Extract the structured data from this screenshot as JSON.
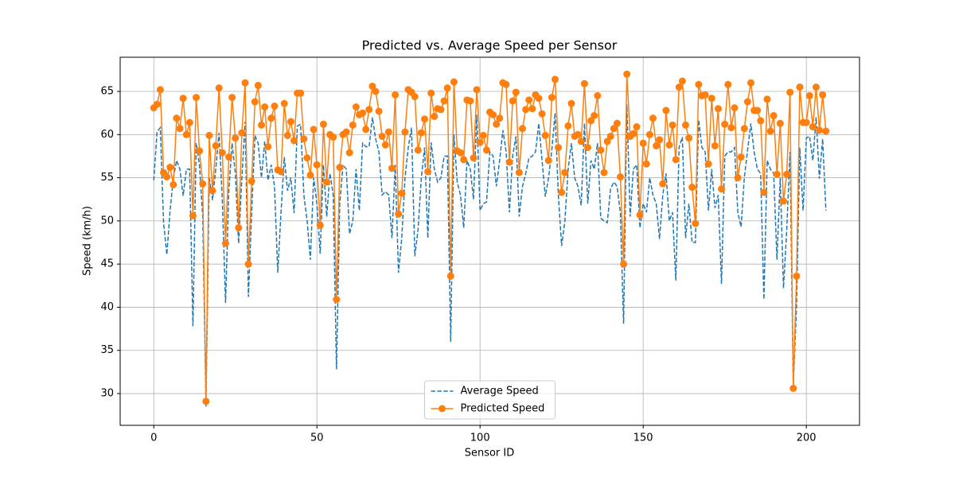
{
  "chart_data": {
    "type": "line",
    "title": "Predicted vs. Average Speed per Sensor",
    "x_label": "Sensor ID",
    "y_label": "Speed (km/h)",
    "xlim": [
      -10.3,
      216.3
    ],
    "xticks": [
      0,
      50,
      100,
      150,
      200
    ],
    "ylim": [
      26.32,
      68.96
    ],
    "yticks": [
      30,
      35,
      40,
      45,
      50,
      55,
      60,
      65
    ],
    "grid": true,
    "legend": "lower center",
    "x": [
      0,
      1,
      2,
      3,
      4,
      5,
      6,
      7,
      8,
      9,
      10,
      11,
      12,
      13,
      14,
      15,
      16,
      17,
      18,
      19,
      20,
      21,
      22,
      23,
      24,
      25,
      26,
      27,
      28,
      29,
      30,
      31,
      32,
      33,
      34,
      35,
      36,
      37,
      38,
      39,
      40,
      41,
      42,
      43,
      44,
      45,
      46,
      47,
      48,
      49,
      50,
      51,
      52,
      53,
      54,
      55,
      56,
      57,
      58,
      59,
      60,
      61,
      62,
      63,
      64,
      65,
      66,
      67,
      68,
      69,
      70,
      71,
      72,
      73,
      74,
      75,
      76,
      77,
      78,
      79,
      80,
      81,
      82,
      83,
      84,
      85,
      86,
      87,
      88,
      89,
      90,
      91,
      92,
      93,
      94,
      95,
      96,
      97,
      98,
      99,
      100,
      101,
      102,
      103,
      104,
      105,
      106,
      107,
      108,
      109,
      110,
      111,
      112,
      113,
      114,
      115,
      116,
      117,
      118,
      119,
      120,
      121,
      122,
      123,
      124,
      125,
      126,
      127,
      128,
      129,
      130,
      131,
      132,
      133,
      134,
      135,
      136,
      137,
      138,
      139,
      140,
      141,
      142,
      143,
      144,
      145,
      146,
      147,
      148,
      149,
      150,
      151,
      152,
      153,
      154,
      155,
      156,
      157,
      158,
      159,
      160,
      161,
      162,
      163,
      164,
      165,
      166,
      167,
      168,
      169,
      170,
      171,
      172,
      173,
      174,
      175,
      176,
      177,
      178,
      179,
      180,
      181,
      182,
      183,
      184,
      185,
      186,
      187,
      188,
      189,
      190,
      191,
      192,
      193,
      194,
      195,
      196,
      197,
      198,
      199,
      200,
      201,
      202,
      203,
      204,
      205,
      206
    ],
    "series": [
      {
        "name": "Average Speed",
        "color": "#1f77b4",
        "linestyle": "dashed",
        "marker": "none",
        "values": [
          54.7,
          60.3,
          60.8,
          49.8,
          46.1,
          51.2,
          55.0,
          57.0,
          56.0,
          52.9,
          56.0,
          56.0,
          37.8,
          59.0,
          56.5,
          50.5,
          28.5,
          55.0,
          52.4,
          56.0,
          60.2,
          52.5,
          40.5,
          53.5,
          59.0,
          55.5,
          47.4,
          55.0,
          61.5,
          41.2,
          51.0,
          59.9,
          59.0,
          55.0,
          59.2,
          54.7,
          56.5,
          54.0,
          44.0,
          51.0,
          57.4,
          53.5,
          55.0,
          50.9,
          61.0,
          61.2,
          53.0,
          50.0,
          45.5,
          55.0,
          52.0,
          46.2,
          56.5,
          50.5,
          55.5,
          53.0,
          32.8,
          52.0,
          56.5,
          56.0,
          48.5,
          50.0,
          56.0,
          51.2,
          59.0,
          58.6,
          58.6,
          62.0,
          59.5,
          58.0,
          53.0,
          53.4,
          53.0,
          48.0,
          56.5,
          44.0,
          48.0,
          55.0,
          58.5,
          60.8,
          45.9,
          49.0,
          55.0,
          58.5,
          48.0,
          59.1,
          56.0,
          54.5,
          55.0,
          57.5,
          57.5,
          36.0,
          60.0,
          54.5,
          53.0,
          49.2,
          57.0,
          56.0,
          52.5,
          62.3,
          51.2,
          52.0,
          52.2,
          58.0,
          57.5,
          54.0,
          57.0,
          60.5,
          58.0,
          51.0,
          57.5,
          59.8,
          50.5,
          54.0,
          55.5,
          57.3,
          57.5,
          58.0,
          61.3,
          57.0,
          52.8,
          55.0,
          58.2,
          62.5,
          53.0,
          47.1,
          50.0,
          56.0,
          59.0,
          55.0,
          54.0,
          51.8,
          61.3,
          52.0,
          57.0,
          56.0,
          59.0,
          50.3,
          50.0,
          49.8,
          53.7,
          54.5,
          54.0,
          51.0,
          38.1,
          63.5,
          50.5,
          56.0,
          56.5,
          49.2,
          52.0,
          51.0,
          55.0,
          53.0,
          52.0,
          47.9,
          53.0,
          55.5,
          50.0,
          51.0,
          43.1,
          58.5,
          59.7,
          48.0,
          52.0,
          47.5,
          47.5,
          61.7,
          58.5,
          58.0,
          51.2,
          56.0,
          51.5,
          53.0,
          42.7,
          57.5,
          58.0,
          58.0,
          58.5,
          51.0,
          49.3,
          55.0,
          58.2,
          61.3,
          58.0,
          56.0,
          55.5,
          40.9,
          57.0,
          56.0,
          55.5,
          45.5,
          55.0,
          42.2,
          49.0,
          58.0,
          30.9,
          40.0,
          58.5,
          51.2,
          59.6,
          59.8,
          57.0,
          62.0,
          54.9,
          59.5,
          51.2
        ]
      },
      {
        "name": "Predicted Speed",
        "color": "#ff7f0e",
        "linestyle": "solid",
        "marker": "o",
        "values": [
          63.1,
          63.5,
          65.2,
          55.6,
          55.1,
          56.2,
          54.2,
          61.9,
          60.7,
          64.2,
          60.0,
          61.4,
          50.6,
          64.3,
          58.1,
          54.3,
          29.1,
          59.9,
          53.5,
          58.7,
          65.4,
          57.9,
          47.4,
          57.4,
          64.3,
          59.6,
          49.2,
          60.2,
          66.0,
          45.0,
          54.6,
          63.8,
          65.7,
          61.1,
          63.2,
          58.6,
          61.9,
          63.3,
          55.9,
          55.7,
          63.6,
          59.9,
          61.5,
          59.3,
          64.8,
          64.8,
          59.5,
          57.3,
          55.3,
          60.6,
          56.5,
          49.5,
          61.2,
          54.5,
          60.0,
          59.7,
          40.9,
          56.2,
          60.0,
          60.3,
          57.9,
          61.1,
          63.2,
          62.3,
          62.5,
          60.6,
          62.9,
          65.6,
          65.0,
          62.7,
          59.8,
          58.8,
          60.3,
          56.1,
          64.6,
          50.8,
          53.2,
          60.3,
          65.2,
          64.9,
          64.4,
          58.2,
          60.2,
          61.8,
          55.7,
          64.8,
          62.1,
          63.0,
          62.9,
          63.9,
          65.4,
          43.6,
          66.1,
          58.1,
          57.9,
          57.1,
          64.0,
          63.9,
          57.3,
          65.2,
          59.1,
          59.9,
          58.2,
          62.6,
          62.3,
          61.2,
          61.9,
          66.0,
          65.8,
          56.8,
          63.9,
          64.9,
          55.6,
          60.7,
          62.9,
          64.0,
          63.0,
          64.6,
          64.2,
          62.4,
          59.9,
          57.0,
          64.3,
          66.4,
          58.5,
          53.3,
          55.6,
          61.0,
          63.6,
          59.8,
          60.0,
          59.2,
          65.9,
          58.5,
          61.6,
          62.2,
          64.5,
          58.2,
          55.6,
          59.2,
          59.8,
          60.7,
          61.3,
          55.1,
          45.0,
          67.0,
          59.8,
          60.1,
          60.9,
          50.7,
          59.0,
          56.6,
          60.0,
          61.9,
          58.7,
          59.4,
          54.3,
          62.8,
          58.8,
          61.1,
          57.1,
          65.5,
          66.2,
          61.1,
          59.6,
          53.9,
          49.7,
          65.8,
          64.5,
          64.6,
          56.6,
          64.2,
          58.7,
          63.0,
          53.7,
          61.2,
          65.8,
          60.8,
          63.1,
          55.0,
          57.4,
          60.7,
          63.8,
          66.0,
          62.8,
          62.8,
          61.6,
          53.3,
          64.1,
          60.4,
          62.2,
          55.4,
          61.3,
          52.3,
          55.4,
          64.9,
          30.6,
          43.6,
          65.5,
          61.4,
          61.4,
          64.5,
          60.9,
          65.5,
          60.5,
          64.6,
          60.4
        ]
      }
    ]
  }
}
